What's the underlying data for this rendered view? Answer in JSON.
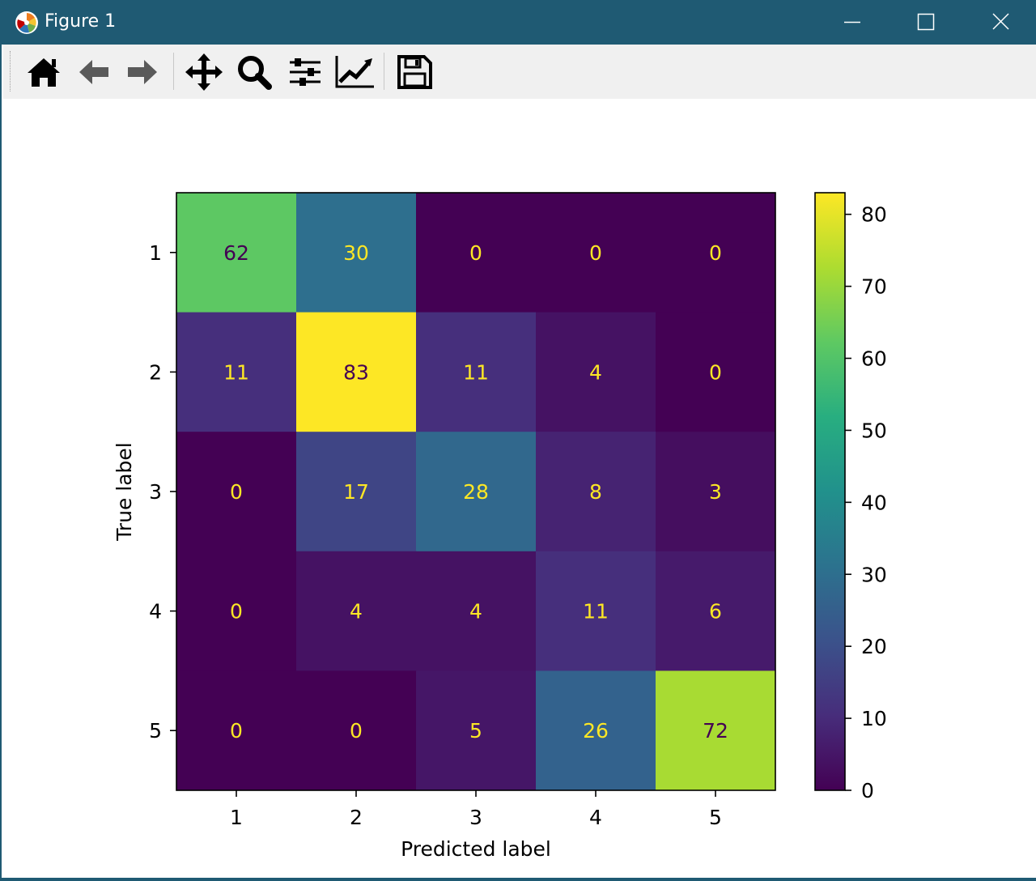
{
  "window": {
    "title": "Figure 1"
  },
  "toolbar": {
    "buttons": [
      {
        "name": "home-button",
        "icon": "home-icon"
      },
      {
        "name": "back-button",
        "icon": "back-arrow-icon"
      },
      {
        "name": "forward-button",
        "icon": "forward-arrow-icon"
      },
      {
        "name": "pan-button",
        "icon": "move-icon"
      },
      {
        "name": "zoom-button",
        "icon": "zoom-icon"
      },
      {
        "name": "subplots-button",
        "icon": "sliders-icon"
      },
      {
        "name": "axes-button",
        "icon": "line-chart-icon"
      },
      {
        "name": "save-button",
        "icon": "floppy-disk-icon"
      }
    ]
  },
  "chart_data": {
    "type": "heatmap",
    "title": "",
    "xlabel": "Predicted label",
    "ylabel": "True label",
    "x_categories": [
      "1",
      "2",
      "3",
      "4",
      "5"
    ],
    "y_categories": [
      "1",
      "2",
      "3",
      "4",
      "5"
    ],
    "values": [
      [
        62,
        30,
        0,
        0,
        0
      ],
      [
        11,
        83,
        11,
        4,
        0
      ],
      [
        0,
        17,
        28,
        8,
        3
      ],
      [
        0,
        4,
        4,
        11,
        6
      ],
      [
        0,
        0,
        5,
        26,
        72
      ]
    ],
    "colormap": "viridis",
    "colorbar": {
      "min": 0,
      "max": 83,
      "ticks": [
        "0",
        "10",
        "20",
        "30",
        "40",
        "50",
        "60",
        "70",
        "80"
      ]
    },
    "text_color_dark": "#440154",
    "text_color_light": "#fde725",
    "grid": false
  }
}
